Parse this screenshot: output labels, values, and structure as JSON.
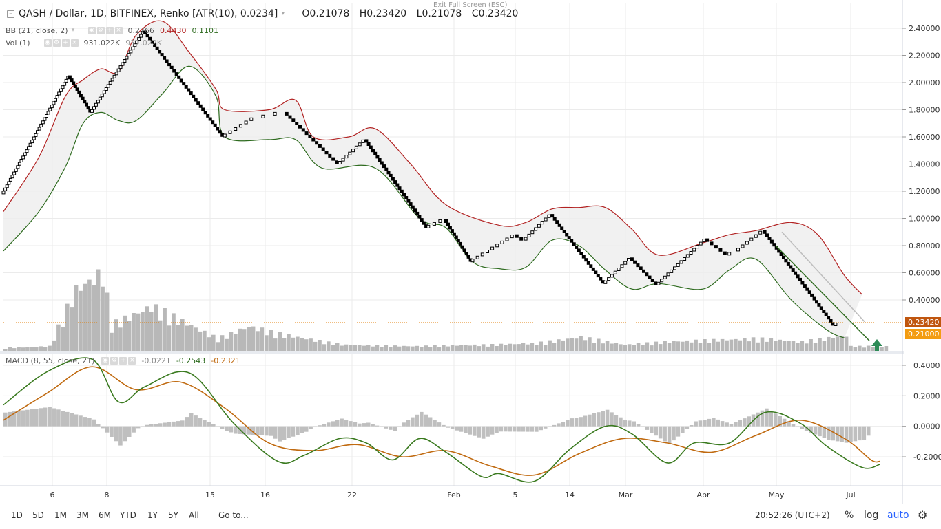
{
  "window": {
    "exit_fullscreen": "Exit Full Screen (ESC)"
  },
  "header": {
    "title": "QASH / Dollar, 1D, BITFINEX, Renko [ATR(10), 0.0234]",
    "open": "O0.21078",
    "high": "H0.23420",
    "low": "L0.21078",
    "close": "C0.23420",
    "bb_label": "BB (21, close, 2)",
    "bb_basis": "0.2766",
    "bb_upper": "0.4430",
    "bb_lower": "0.1101",
    "vol_label": "Vol (1)",
    "vol_value1": "931.022K",
    "vol_value2": "931.022K",
    "macd_label": "MACD (8, 55, close, 21)",
    "macd_hist": "-0.0221",
    "macd_line": "-0.2543",
    "macd_signal": "-0.2321"
  },
  "price_axis": {
    "ticks": [
      "2.40000",
      "2.20000",
      "2.00000",
      "1.80000",
      "1.60000",
      "1.40000",
      "1.20000",
      "1.00000",
      "0.80000",
      "0.60000",
      "0.40000"
    ],
    "last_price": "0.23420",
    "second_price": "0.21000"
  },
  "macd_axis": {
    "ticks": [
      "0.4000",
      "0.2000",
      "0.0000",
      "-0.2000"
    ]
  },
  "time_axis": {
    "ticks": [
      "6",
      "8",
      "15",
      "16",
      "22",
      "Feb",
      "5",
      "14",
      "Mar",
      "Apr",
      "May",
      "Jul"
    ]
  },
  "bottombar": {
    "timeframes": [
      "1D",
      "5D",
      "1M",
      "3M",
      "6M",
      "YTD",
      "1Y",
      "5Y",
      "All"
    ],
    "goto": "Go to...",
    "clock": "20:52:26 (UTC+2)",
    "percent": "%",
    "log": "log",
    "auto": "auto",
    "settings_icon": "gear-icon"
  },
  "colors": {
    "upper_band": "#b22222",
    "lower_band": "#2e6b1f",
    "band_fill": "#eeeeee",
    "volume": "#b8b8b8",
    "macd_line": "#3a7a1f",
    "signal_line": "#c06a10",
    "histogram": "#bfbfbf",
    "last_price_tag": "#e07b00",
    "arrow": "#2e8b57",
    "auto_text": "#2962ff"
  },
  "chart_data": [
    {
      "type": "line",
      "title": "QASH / Dollar, 1D, BITFINEX, Renko [ATR(10), 0.0234]",
      "ylim": [
        0.05,
        2.5
      ],
      "price_path": [
        [
          0,
          1.18
        ],
        [
          15,
          2.05
        ],
        [
          20,
          1.78
        ],
        [
          32,
          2.38
        ],
        [
          50,
          1.6
        ],
        [
          56,
          1.72
        ],
        [
          64,
          1.78
        ],
        [
          76,
          1.4
        ],
        [
          82,
          1.58
        ],
        [
          96,
          0.93
        ],
        [
          100,
          0.99
        ],
        [
          106,
          0.68
        ],
        [
          116,
          0.88
        ],
        [
          118,
          0.84
        ],
        [
          124,
          1.03
        ],
        [
          136,
          0.52
        ],
        [
          142,
          0.71
        ],
        [
          148,
          0.51
        ],
        [
          159,
          0.85
        ],
        [
          164,
          0.73
        ],
        [
          166,
          0.76
        ],
        [
          172,
          0.91
        ],
        [
          188,
          0.21
        ],
        [
          189,
          0.23
        ]
      ],
      "series": [
        {
          "name": "BB upper",
          "points": [
            [
              0,
              1.05
            ],
            [
              8,
              1.45
            ],
            [
              14,
              1.9
            ],
            [
              18,
              2.02
            ],
            [
              22,
              2.1
            ],
            [
              26,
              2.08
            ],
            [
              30,
              2.35
            ],
            [
              36,
              2.45
            ],
            [
              42,
              2.22
            ],
            [
              48,
              1.95
            ],
            [
              50,
              1.8
            ],
            [
              60,
              1.8
            ],
            [
              66,
              1.87
            ],
            [
              70,
              1.6
            ],
            [
              78,
              1.6
            ],
            [
              84,
              1.66
            ],
            [
              92,
              1.4
            ],
            [
              100,
              1.1
            ],
            [
              112,
              0.95
            ],
            [
              118,
              0.97
            ],
            [
              124,
              1.07
            ],
            [
              130,
              1.08
            ],
            [
              136,
              1.08
            ],
            [
              142,
              0.92
            ],
            [
              148,
              0.73
            ],
            [
              158,
              0.82
            ],
            [
              164,
              0.88
            ],
            [
              170,
              0.91
            ],
            [
              178,
              0.97
            ],
            [
              184,
              0.88
            ],
            [
              190,
              0.58
            ],
            [
              194,
              0.44
            ]
          ]
        },
        {
          "name": "BB lower",
          "points": [
            [
              0,
              0.76
            ],
            [
              8,
              1.05
            ],
            [
              14,
              1.38
            ],
            [
              18,
              1.7
            ],
            [
              22,
              1.78
            ],
            [
              26,
              1.72
            ],
            [
              30,
              1.72
            ],
            [
              36,
              1.92
            ],
            [
              42,
              2.12
            ],
            [
              48,
              1.9
            ],
            [
              50,
              1.6
            ],
            [
              60,
              1.58
            ],
            [
              66,
              1.58
            ],
            [
              72,
              1.37
            ],
            [
              84,
              1.37
            ],
            [
              94,
              1.0
            ],
            [
              100,
              0.93
            ],
            [
              106,
              0.68
            ],
            [
              112,
              0.63
            ],
            [
              118,
              0.64
            ],
            [
              124,
              0.84
            ],
            [
              130,
              0.8
            ],
            [
              136,
              0.62
            ],
            [
              142,
              0.48
            ],
            [
              148,
              0.52
            ],
            [
              158,
              0.48
            ],
            [
              164,
              0.62
            ],
            [
              170,
              0.7
            ],
            [
              178,
              0.4
            ],
            [
              186,
              0.18
            ],
            [
              190,
              0.12
            ]
          ]
        }
      ],
      "volume": [
        [
          0,
          0.02
        ],
        [
          10,
          0.03
        ],
        [
          16,
          0.4
        ],
        [
          22,
          0.51
        ],
        [
          24,
          0.17
        ],
        [
          33,
          0.29
        ],
        [
          48,
          0.08
        ],
        [
          55,
          0.16
        ],
        [
          62,
          0.11
        ],
        [
          76,
          0.04
        ],
        [
          92,
          0.03
        ],
        [
          110,
          0.04
        ],
        [
          120,
          0.05
        ],
        [
          130,
          0.09
        ],
        [
          140,
          0.04
        ],
        [
          150,
          0.06
        ],
        [
          160,
          0.07
        ],
        [
          170,
          0.08
        ],
        [
          180,
          0.06
        ],
        [
          190,
          0.1
        ]
      ]
    },
    {
      "type": "line",
      "title": "MACD (8, 55, close, 21)",
      "ylim": [
        -0.45,
        0.45
      ],
      "series": [
        {
          "name": "MACD",
          "points": [
            [
              0,
              0.14
            ],
            [
              10,
              0.36
            ],
            [
              20,
              0.44
            ],
            [
              26,
              0.16
            ],
            [
              32,
              0.26
            ],
            [
              42,
              0.35
            ],
            [
              52,
              0.02
            ],
            [
              62,
              -0.23
            ],
            [
              68,
              -0.19
            ],
            [
              76,
              -0.08
            ],
            [
              82,
              -0.11
            ],
            [
              88,
              -0.22
            ],
            [
              94,
              -0.08
            ],
            [
              100,
              -0.17
            ],
            [
              108,
              -0.33
            ],
            [
              112,
              -0.31
            ],
            [
              120,
              -0.36
            ],
            [
              128,
              -0.15
            ],
            [
              136,
              0.0
            ],
            [
              142,
              -0.05
            ],
            [
              150,
              -0.24
            ],
            [
              156,
              -0.11
            ],
            [
              164,
              -0.11
            ],
            [
              172,
              0.09
            ],
            [
              180,
              0.02
            ],
            [
              186,
              -0.13
            ],
            [
              194,
              -0.27
            ],
            [
              198,
              -0.25
            ]
          ]
        },
        {
          "name": "Signal",
          "points": [
            [
              0,
              0.04
            ],
            [
              10,
              0.22
            ],
            [
              20,
              0.39
            ],
            [
              30,
              0.24
            ],
            [
              40,
              0.29
            ],
            [
              50,
              0.12
            ],
            [
              60,
              -0.11
            ],
            [
              70,
              -0.16
            ],
            [
              80,
              -0.12
            ],
            [
              90,
              -0.2
            ],
            [
              100,
              -0.16
            ],
            [
              110,
              -0.26
            ],
            [
              120,
              -0.32
            ],
            [
              130,
              -0.18
            ],
            [
              140,
              -0.08
            ],
            [
              150,
              -0.11
            ],
            [
              160,
              -0.17
            ],
            [
              170,
              -0.06
            ],
            [
              180,
              0.04
            ],
            [
              190,
              -0.08
            ],
            [
              196,
              -0.22
            ],
            [
              198,
              -0.23
            ]
          ]
        }
      ]
    }
  ]
}
